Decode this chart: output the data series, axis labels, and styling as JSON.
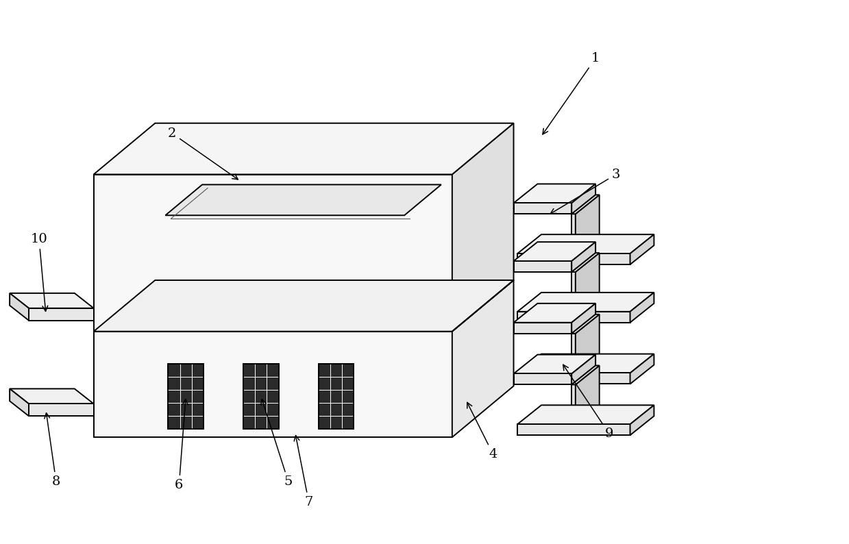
{
  "bg_color": "#ffffff",
  "line_color": "#000000",
  "lw": 1.4,
  "fig_width": 12.39,
  "fig_height": 7.94,
  "dpi": 100
}
